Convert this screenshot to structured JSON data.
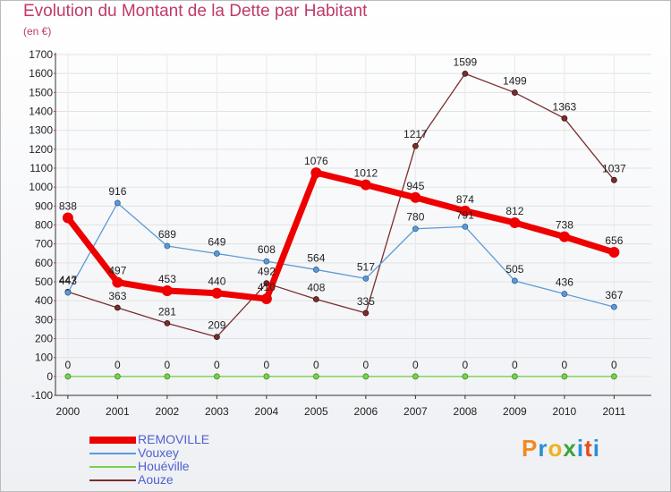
{
  "title": "Evolution du Montant de la Dette par Habitant",
  "subtitle": "(en €)",
  "logo": [
    "P",
    "r",
    "o",
    "x",
    "i",
    "t",
    "i"
  ],
  "logo_colors": [
    "#f28a1e",
    "#2a8fd6",
    "#f0b21c",
    "#3aa33a",
    "#2a8fd6",
    "#e84c1a",
    "#2a8fd6"
  ],
  "chart_data": {
    "type": "line",
    "title": "Evolution du Montant de la Dette par Habitant",
    "subtitle": "(en €)",
    "xlabel": "",
    "ylabel": "",
    "ylim": [
      -100,
      1700
    ],
    "yticks": [
      -100,
      0,
      100,
      200,
      300,
      400,
      500,
      600,
      700,
      800,
      900,
      1000,
      1100,
      1200,
      1300,
      1400,
      1500,
      1600,
      1700
    ],
    "x": [
      "2000",
      "2001",
      "2002",
      "2003",
      "2004",
      "2005",
      "2006",
      "2007",
      "2008",
      "2009",
      "2010",
      "2011"
    ],
    "grid": true,
    "legend": "bottom-left",
    "series": [
      {
        "name": "REMOVILLE",
        "color": "#ee0000",
        "values": [
          838,
          497,
          453,
          440,
          410,
          1076,
          1012,
          945,
          874,
          812,
          738,
          656
        ],
        "labels": [
          "838",
          "497",
          "453",
          "440",
          "410",
          "1076",
          "1012",
          "945",
          "874",
          "812",
          "738",
          "656"
        ]
      },
      {
        "name": "Vouxey",
        "color": "#5b9bd5",
        "values": [
          443,
          916,
          689,
          649,
          608,
          564,
          517,
          780,
          791,
          505,
          436,
          367
        ],
        "labels": [
          "443",
          "916",
          "689",
          "649",
          "608",
          "564",
          "517",
          "780",
          "791",
          "505",
          "436",
          "367"
        ]
      },
      {
        "name": "Houéville",
        "color": "#7cd050",
        "values": [
          0,
          0,
          0,
          0,
          0,
          0,
          0,
          0,
          0,
          0,
          0,
          0
        ],
        "labels": [
          "0",
          "0",
          "0",
          "0",
          "0",
          "0",
          "0",
          "0",
          "0",
          "0",
          "0",
          "0"
        ]
      },
      {
        "name": "Aouze",
        "color": "#7a2e2e",
        "values": [
          447,
          363,
          281,
          209,
          492,
          408,
          335,
          1217,
          1599,
          1499,
          1363,
          1037
        ],
        "labels": [
          "447",
          "363",
          "281",
          "209",
          "492",
          "408",
          "335",
          "1217",
          "1599",
          "1499",
          "1363",
          "1037"
        ]
      }
    ]
  }
}
